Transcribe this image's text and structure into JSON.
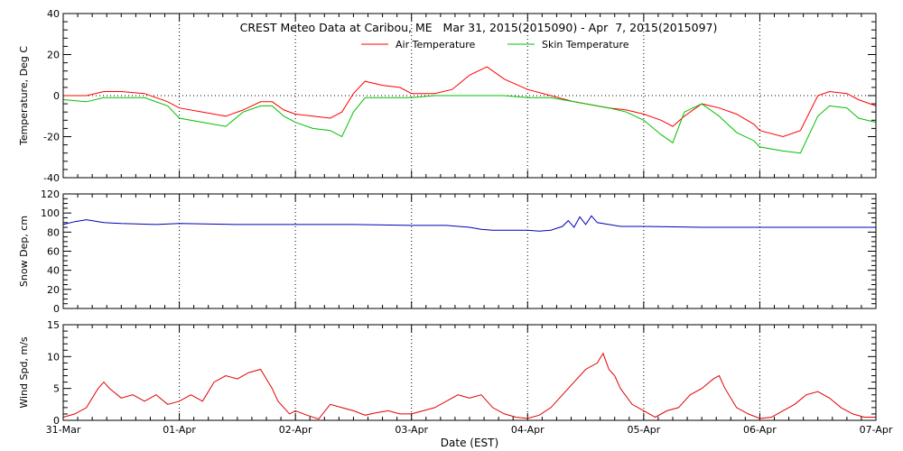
{
  "title": "CREST Meteo Data at Caribou, ME   Mar 31, 2015(2015090) - Apr  7, 2015(2015097)",
  "xlabel": "Date (EST)",
  "x_ticks": [
    "31-Mar",
    "01-Apr",
    "02-Apr",
    "03-Apr",
    "04-Apr",
    "05-Apr",
    "06-Apr",
    "07-Apr"
  ],
  "colors": {
    "air": "#ff0000",
    "skin": "#00c000",
    "snow": "#0000b4",
    "wind": "#e00000",
    "axis": "#000000"
  },
  "chart_data": [
    {
      "type": "line",
      "ylabel": "Temperature, Deg C",
      "xlim": [
        0,
        7
      ],
      "ylim": [
        -40,
        40
      ],
      "y_ticks": [
        "-40",
        "-20",
        "0",
        "20",
        "40"
      ],
      "grid": "vertical dotted at day boundaries",
      "legend": "top-center",
      "series": [
        {
          "name": "Air Temperature",
          "x": [
            0,
            0.2,
            0.35,
            0.5,
            0.7,
            0.9,
            1.0,
            1.2,
            1.4,
            1.55,
            1.7,
            1.8,
            1.9,
            2.0,
            2.15,
            2.3,
            2.4,
            2.5,
            2.6,
            2.75,
            2.9,
            3.0,
            3.2,
            3.35,
            3.5,
            3.65,
            3.8,
            4.0,
            4.2,
            4.4,
            4.6,
            4.7,
            4.85,
            5.0,
            5.15,
            5.25,
            5.35,
            5.5,
            5.65,
            5.8,
            5.95,
            6.0,
            6.2,
            6.35,
            6.5,
            6.6,
            6.75,
            6.85,
            7.0
          ],
          "y": [
            0,
            0,
            2,
            2,
            1,
            -3,
            -6,
            -8,
            -10,
            -7,
            -3,
            -3,
            -7,
            -9,
            -10,
            -11,
            -8,
            1,
            7,
            5,
            4,
            1,
            1,
            3,
            10,
            14,
            8,
            3,
            0,
            -3,
            -5,
            -6,
            -7,
            -9,
            -12,
            -15,
            -10,
            -4,
            -6,
            -9,
            -14,
            -17,
            -20,
            -17,
            0,
            2,
            1,
            -2,
            -5
          ]
        },
        {
          "name": "Skin Temperature",
          "x": [
            0,
            0.2,
            0.35,
            0.5,
            0.7,
            0.9,
            1.0,
            1.2,
            1.4,
            1.55,
            1.7,
            1.8,
            1.9,
            2.0,
            2.15,
            2.3,
            2.4,
            2.5,
            2.6,
            2.75,
            2.9,
            3.0,
            3.2,
            3.35,
            3.5,
            3.65,
            3.8,
            4.0,
            4.2,
            4.4,
            4.6,
            4.7,
            4.85,
            5.0,
            5.15,
            5.25,
            5.35,
            5.5,
            5.65,
            5.8,
            5.95,
            6.0,
            6.2,
            6.35,
            6.5,
            6.6,
            6.75,
            6.85,
            7.0
          ],
          "y": [
            -2,
            -3,
            -1,
            -1,
            -1,
            -5,
            -11,
            -13,
            -15,
            -8,
            -5,
            -5,
            -10,
            -13,
            -16,
            -17,
            -20,
            -8,
            -1,
            -1,
            -1,
            -1,
            0,
            0,
            0,
            0,
            0,
            -1,
            -1,
            -3,
            -5,
            -6,
            -8,
            -12,
            -19,
            -23,
            -8,
            -4,
            -10,
            -18,
            -22,
            -25,
            -27,
            -28,
            -10,
            -5,
            -6,
            -11,
            -13
          ]
        }
      ]
    },
    {
      "type": "line",
      "ylabel": "Snow Dep, cm",
      "xlim": [
        0,
        7
      ],
      "ylim": [
        0,
        120
      ],
      "y_ticks": [
        "0",
        "20",
        "40",
        "60",
        "80",
        "100",
        "120"
      ],
      "grid": "vertical dotted at day boundaries",
      "series": [
        {
          "x": [
            0,
            0.1,
            0.2,
            0.35,
            0.5,
            0.8,
            1.0,
            1.5,
            2.0,
            2.5,
            3.0,
            3.3,
            3.5,
            3.6,
            3.7,
            3.9,
            4.0,
            4.1,
            4.2,
            4.3,
            4.35,
            4.4,
            4.45,
            4.5,
            4.55,
            4.6,
            4.7,
            4.8,
            5.0,
            5.5,
            6.0,
            6.5,
            7.0
          ],
          "y": [
            88,
            91,
            93,
            90,
            89,
            88,
            89,
            88,
            88,
            88,
            87,
            87,
            85,
            83,
            82,
            82,
            82,
            81,
            82,
            86,
            92,
            85,
            96,
            88,
            97,
            90,
            88,
            86,
            86,
            85,
            85,
            85,
            85
          ]
        }
      ]
    },
    {
      "type": "line",
      "ylabel": "Wind Spd, m/s",
      "xlim": [
        0,
        7
      ],
      "ylim": [
        0,
        15
      ],
      "y_ticks": [
        "0",
        "5",
        "10",
        "15"
      ],
      "grid": "vertical dotted at day boundaries",
      "series": [
        {
          "x": [
            0,
            0.1,
            0.2,
            0.3,
            0.35,
            0.4,
            0.5,
            0.6,
            0.7,
            0.8,
            0.9,
            1.0,
            1.1,
            1.2,
            1.3,
            1.4,
            1.5,
            1.6,
            1.7,
            1.8,
            1.85,
            1.9,
            1.95,
            2.0,
            2.1,
            2.2,
            2.3,
            2.4,
            2.5,
            2.6,
            2.7,
            2.8,
            2.9,
            3.0,
            3.1,
            3.2,
            3.3,
            3.4,
            3.5,
            3.6,
            3.7,
            3.8,
            3.9,
            4.0,
            4.1,
            4.2,
            4.3,
            4.4,
            4.5,
            4.6,
            4.65,
            4.7,
            4.75,
            4.8,
            4.9,
            5.0,
            5.1,
            5.2,
            5.3,
            5.4,
            5.5,
            5.6,
            5.65,
            5.7,
            5.8,
            5.9,
            6.0,
            6.1,
            6.2,
            6.3,
            6.4,
            6.5,
            6.6,
            6.7,
            6.8,
            6.9,
            7.0
          ],
          "y": [
            0.5,
            1,
            2,
            5,
            6,
            5,
            3.5,
            4,
            3,
            4,
            2.5,
            3,
            4,
            3,
            6,
            7,
            6.5,
            7.5,
            8,
            5,
            3,
            2,
            1,
            1.5,
            0.8,
            0.2,
            2.5,
            2,
            1.5,
            0.8,
            1.2,
            1.5,
            1,
            1,
            1.5,
            2,
            3,
            4,
            3.5,
            4,
            2,
            1,
            0.5,
            0.3,
            0.8,
            2,
            4,
            6,
            8,
            9,
            10.5,
            8,
            7,
            5,
            2.5,
            1.5,
            0.5,
            1.5,
            2,
            4,
            5,
            6.5,
            7,
            5,
            2,
            1,
            0.3,
            0.5,
            1.5,
            2.5,
            4,
            4.5,
            3.5,
            2,
            1,
            0.5,
            0.5
          ]
        }
      ]
    }
  ]
}
